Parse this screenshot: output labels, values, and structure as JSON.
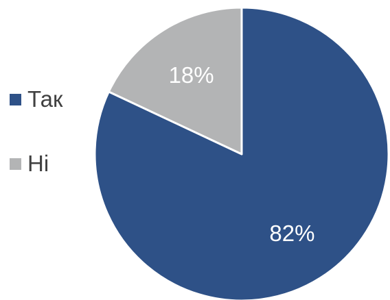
{
  "chart_data": {
    "type": "pie",
    "title": "",
    "categories": [
      "Так",
      "Ні"
    ],
    "values": [
      82,
      18
    ],
    "value_labels": [
      "82%",
      "18%"
    ],
    "start_angle_deg": 90,
    "direction": "clockwise",
    "legend_position": "left",
    "colors": {
      "Так": "#2e5187",
      "Ні": "#b3b4b5"
    },
    "label_colors": {
      "Так": "#ffffff",
      "Ні": "#ffffff"
    }
  }
}
